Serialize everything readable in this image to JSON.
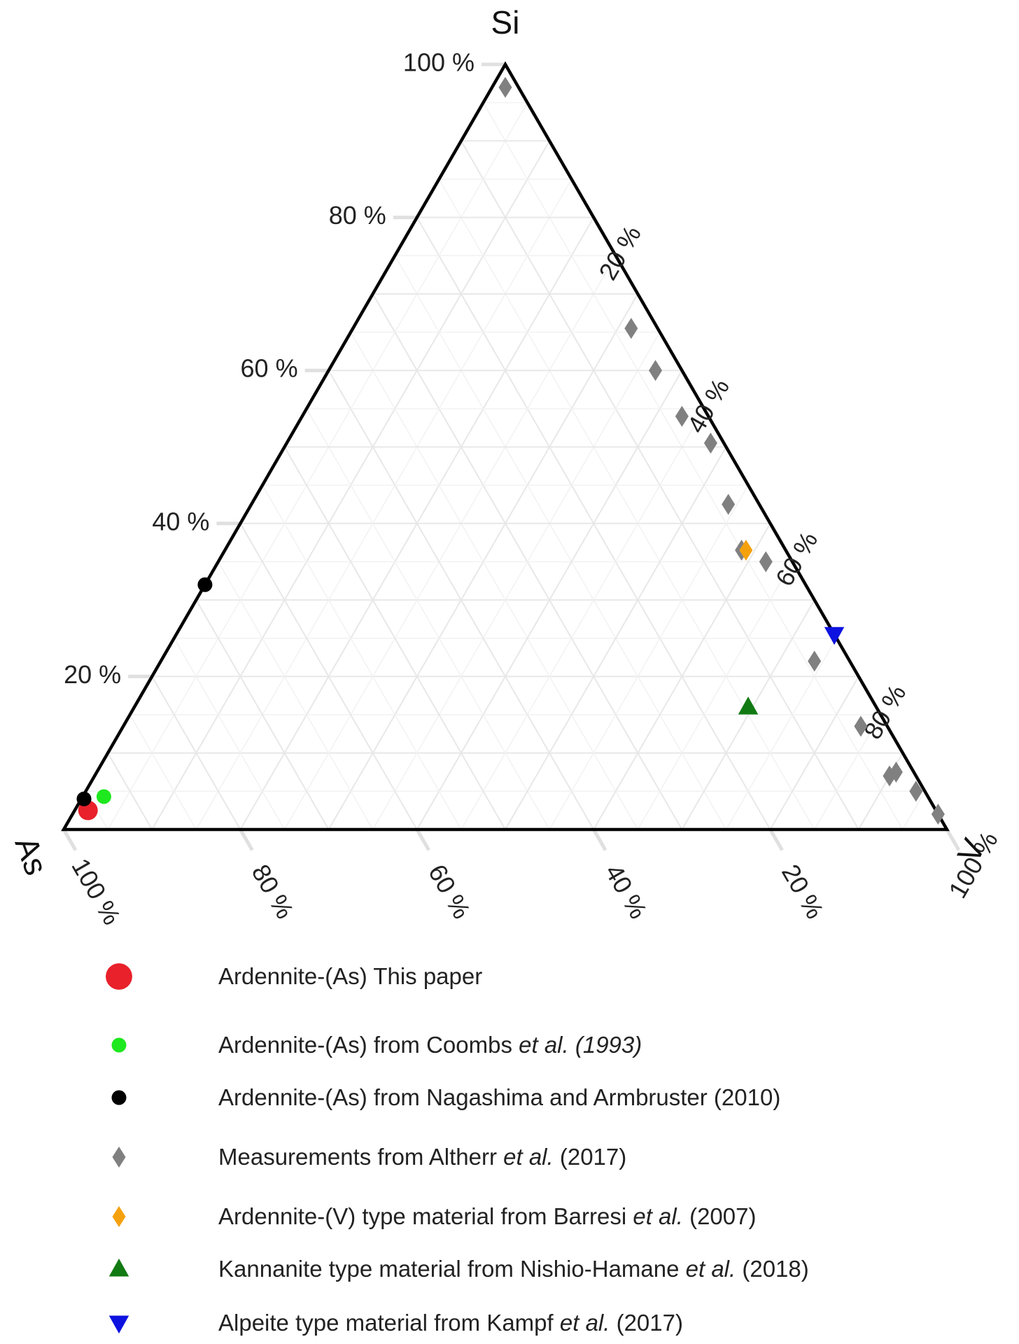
{
  "chart_data": {
    "type": "scatter",
    "subtype": "ternary",
    "axes": {
      "top": "Si",
      "left": "As",
      "right": "V"
    },
    "grid": true,
    "ticks": {
      "si": [
        "20 %",
        "40 %",
        "60 %",
        "80 %",
        "100 %"
      ],
      "v": [
        "20 %",
        "40 %",
        "60 %",
        "80 %",
        "100 %"
      ],
      "as": [
        "100 %",
        "80 %",
        "60 %",
        "40 %",
        "20 %"
      ]
    },
    "series": [
      {
        "name": "Ardennite-(As) This paper",
        "marker": "circle-large",
        "color": "#e8212b",
        "points": [
          {
            "si": 2.5,
            "v": 1.5,
            "as": 96.0
          }
        ]
      },
      {
        "name": "Ardennite-(As) from Coombs et al. (1993)",
        "marker": "circle",
        "color": "#1ee81e",
        "points": [
          {
            "si": 4.3,
            "v": 2.4,
            "as": 93.3
          }
        ]
      },
      {
        "name": "Ardennite-(As) from Nagashima and Armbruster (2010)",
        "marker": "circle",
        "color": "#000000",
        "points": [
          {
            "si": 4.0,
            "v": 0.3,
            "as": 95.7
          },
          {
            "si": 32.0,
            "v": 0.0,
            "as": 68.0
          }
        ]
      },
      {
        "name": "Measurements from Altherr et al. (2017)",
        "marker": "diamond",
        "color": "#808080",
        "points": [
          {
            "si": 97.0,
            "v": 1.5,
            "as": 1.5
          },
          {
            "si": 65.5,
            "v": 31.5,
            "as": 3.0
          },
          {
            "si": 60.0,
            "v": 37.0,
            "as": 3.0
          },
          {
            "si": 54.0,
            "v": 43.0,
            "as": 3.0
          },
          {
            "si": 50.5,
            "v": 48.0,
            "as": 1.5
          },
          {
            "si": 42.5,
            "v": 54.0,
            "as": 3.5
          },
          {
            "si": 36.5,
            "v": 58.5,
            "as": 5.0
          },
          {
            "si": 35.0,
            "v": 62.0,
            "as": 3.0
          },
          {
            "si": 22.0,
            "v": 74.0,
            "as": 4.0
          },
          {
            "si": 13.5,
            "v": 83.5,
            "as": 3.0
          },
          {
            "si": 7.5,
            "v": 90.5,
            "as": 2.0
          },
          {
            "si": 7.0,
            "v": 90.0,
            "as": 3.0
          },
          {
            "si": 5.0,
            "v": 94.0,
            "as": 1.0
          },
          {
            "si": 2.0,
            "v": 98.0,
            "as": 0.0
          }
        ]
      },
      {
        "name": "Ardennite-(V) type material from Barresi et al. (2007)",
        "marker": "diamond",
        "color": "#f5a10e",
        "points": [
          {
            "si": 36.5,
            "v": 59.0,
            "as": 4.5
          }
        ]
      },
      {
        "name": "Kannanite type material from Nishio-Hamane et al. (2018)",
        "marker": "triangle-up",
        "color": "#127a12",
        "points": [
          {
            "si": 16.0,
            "v": 69.5,
            "as": 14.5
          }
        ]
      },
      {
        "name": "Alpeite type material from Kampf et al. (2017)",
        "marker": "triangle-down",
        "color": "#0d12e0",
        "points": [
          {
            "si": 25.5,
            "v": 74.5,
            "as": 0.0
          }
        ]
      }
    ]
  },
  "legend": [
    {
      "marker": "circle-large",
      "color": "#e8212b",
      "parts": [
        {
          "text": "Ardennite-(As) This paper",
          "italic": false
        }
      ]
    },
    {
      "marker": "circle",
      "color": "#1ee81e",
      "parts": [
        {
          "text": "Ardennite-(As) from Coombs ",
          "italic": false
        },
        {
          "text": "et al. (1993)",
          "italic": true
        }
      ]
    },
    {
      "marker": "circle",
      "color": "#000000",
      "parts": [
        {
          "text": "Ardennite-(As) from Nagashima and Armbruster (2010)",
          "italic": false
        }
      ]
    },
    {
      "marker": "diamond",
      "color": "#808080",
      "parts": [
        {
          "text": "Measurements from Altherr ",
          "italic": false
        },
        {
          "text": "et al.",
          "italic": true
        },
        {
          "text": " (2017)",
          "italic": false
        }
      ]
    },
    {
      "marker": "diamond",
      "color": "#f5a10e",
      "parts": [
        {
          "text": "Ardennite-(V) type material from Barresi ",
          "italic": false
        },
        {
          "text": "et al.",
          "italic": true
        },
        {
          "text": " (2007)",
          "italic": false
        }
      ]
    },
    {
      "marker": "triangle-up",
      "color": "#127a12",
      "parts": [
        {
          "text": "Kannanite type material from Nishio-Hamane ",
          "italic": false
        },
        {
          "text": "et al.",
          "italic": true
        },
        {
          "text": " (2018)",
          "italic": false
        }
      ]
    },
    {
      "marker": "triangle-down",
      "color": "#0d12e0",
      "parts": [
        {
          "text": "Alpeite type material from Kampf ",
          "italic": false
        },
        {
          "text": "et al.",
          "italic": true
        },
        {
          "text": " (2017)",
          "italic": false
        }
      ]
    }
  ]
}
